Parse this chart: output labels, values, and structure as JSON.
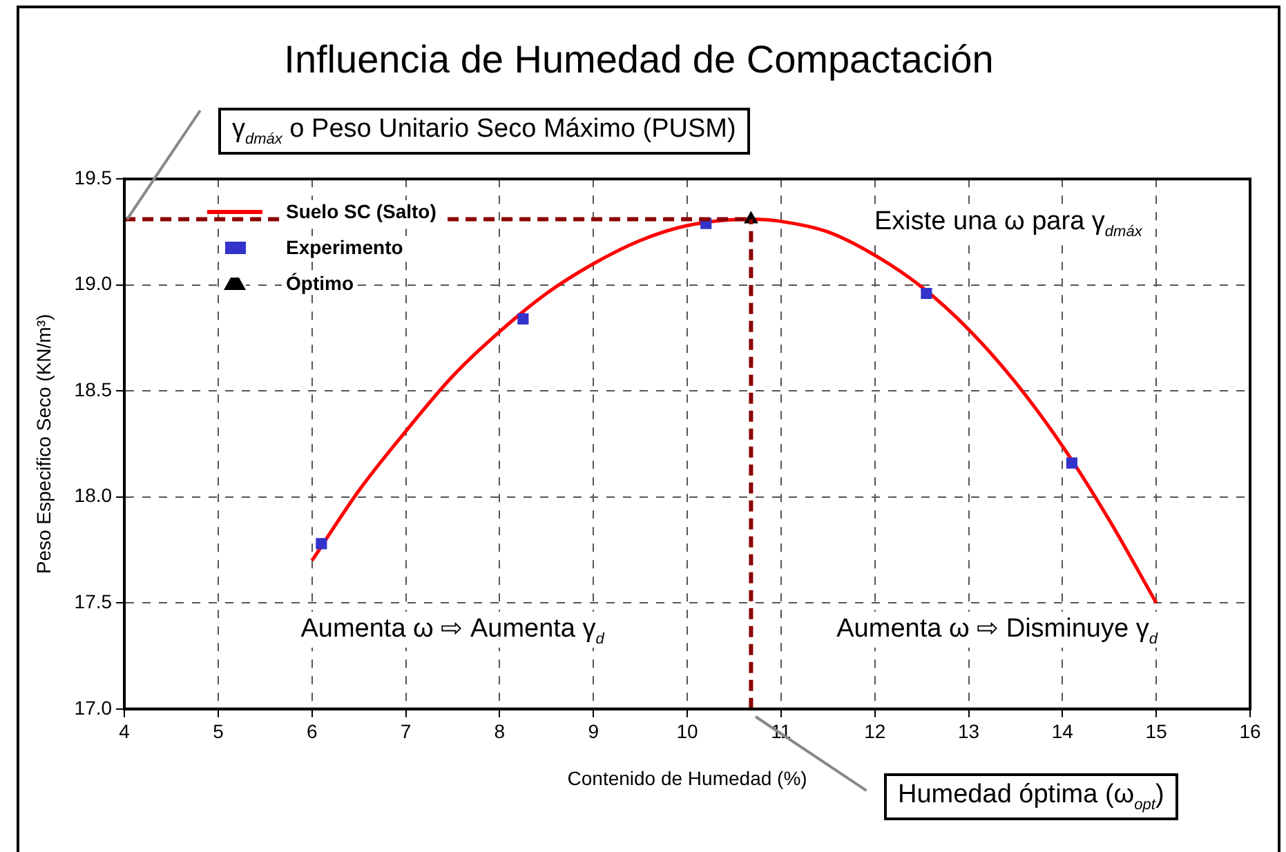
{
  "chart_data": {
    "type": "line",
    "title": "Influencia de Humedad de Compactación",
    "xlabel": "Contenido de Humedad (%)",
    "ylabel": "Peso Especifico Seco (KN/m³)",
    "series": [
      {
        "name": "Suelo SC (Salto)",
        "color": "#ff0000",
        "marker": "none",
        "line_style": "solid",
        "x": [
          6,
          6.5,
          7,
          7.5,
          8,
          8.5,
          9,
          9.5,
          10,
          10.68,
          11,
          11.5,
          12,
          12.5,
          13,
          13.5,
          14,
          14.5,
          15
        ],
        "values": [
          17.7,
          18.03,
          18.31,
          18.57,
          18.78,
          18.96,
          19.1,
          19.21,
          19.28,
          19.31,
          19.3,
          19.25,
          19.14,
          18.99,
          18.79,
          18.54,
          18.24,
          17.89,
          17.5
        ]
      },
      {
        "name": "Experimento",
        "type": "scatter",
        "color": "#3333cc",
        "marker": "square",
        "x": [
          6.1,
          8.25,
          10.2,
          12.55,
          14.1
        ],
        "values": [
          17.78,
          18.84,
          19.29,
          18.96,
          18.16
        ]
      },
      {
        "name": "Óptimo",
        "type": "scatter",
        "color": "#000000",
        "marker": "triangle",
        "x": [
          10.68
        ],
        "values": [
          19.31
        ]
      }
    ],
    "xlim": [
      4,
      16
    ],
    "xticks": [
      4,
      5,
      6,
      7,
      8,
      9,
      10,
      11,
      12,
      13,
      14,
      15,
      16
    ],
    "ylim": [
      17,
      19.5
    ],
    "yticks": [
      {
        "value": 17,
        "label": "17.0"
      },
      {
        "value": 17.5,
        "label": "17.5"
      },
      {
        "value": 18,
        "label": "18.0"
      },
      {
        "value": 18.5,
        "label": "18.5"
      },
      {
        "value": 19,
        "label": "19.0"
      },
      {
        "value": 19.5,
        "label": "19.5"
      }
    ],
    "ref_lines": [
      {
        "axis": "y",
        "value": 19.31,
        "color": "#8b0000",
        "line_style": "dashed"
      },
      {
        "axis": "x",
        "value": 10.68,
        "color": "#8b0000",
        "line_style": "dashed"
      }
    ],
    "annotations": [
      {
        "text": "γ$_{dmáx}$ o Peso Unitario Seco Máximo (PUSM)",
        "x": 4,
        "y": 19.31
      },
      "Existe una ω para γ$_{dmáx}$",
      "Aumenta ω ⇨ Aumenta γ$_{d}$",
      "Aumenta ω ⇨ Disminuye γ$_{d}$",
      "Humedad óptima (ω$_{opt}$)"
    ],
    "grid": true,
    "legend": "top left"
  }
}
